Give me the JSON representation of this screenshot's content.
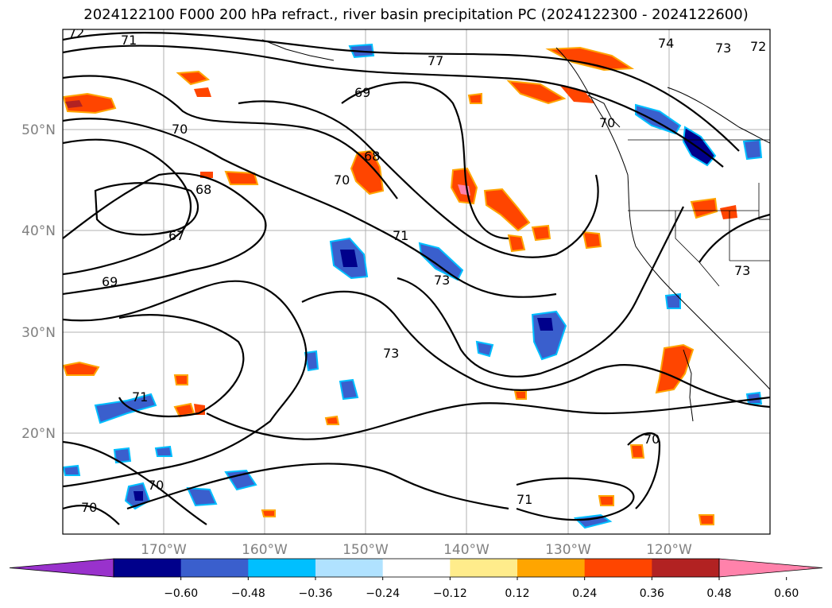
{
  "title": "2024122100 F000 200 hPa refract., river basin precipitation PC (2024122300 - 2024122600)",
  "lat_ticks": [
    "50°N",
    "40°N",
    "30°N",
    "20°N"
  ],
  "lon_ticks": [
    "170°W",
    "160°W",
    "150°W",
    "140°W",
    "130°W",
    "120°W"
  ],
  "colorbar": {
    "tick_labels": [
      "−0.60",
      "−0.48",
      "−0.36",
      "−0.24",
      "−0.12",
      "0.12",
      "0.24",
      "0.36",
      "0.48",
      "0.60"
    ],
    "colors": [
      "#9932cc",
      "#00008b",
      "#3a5fcd",
      "#00bfff",
      "#b0e2ff",
      "#ffffff",
      "#ffec8b",
      "#ffa500",
      "#ff4500",
      "#b22222",
      "#ff82ab"
    ]
  },
  "contour_labels": [
    "72",
    "71",
    "77",
    "74",
    "73",
    "72",
    "69",
    "70",
    "70",
    "68",
    "70",
    "68",
    "67",
    "69",
    "71",
    "73",
    "73",
    "71",
    "70",
    "70",
    "71",
    "70",
    "73"
  ]
}
